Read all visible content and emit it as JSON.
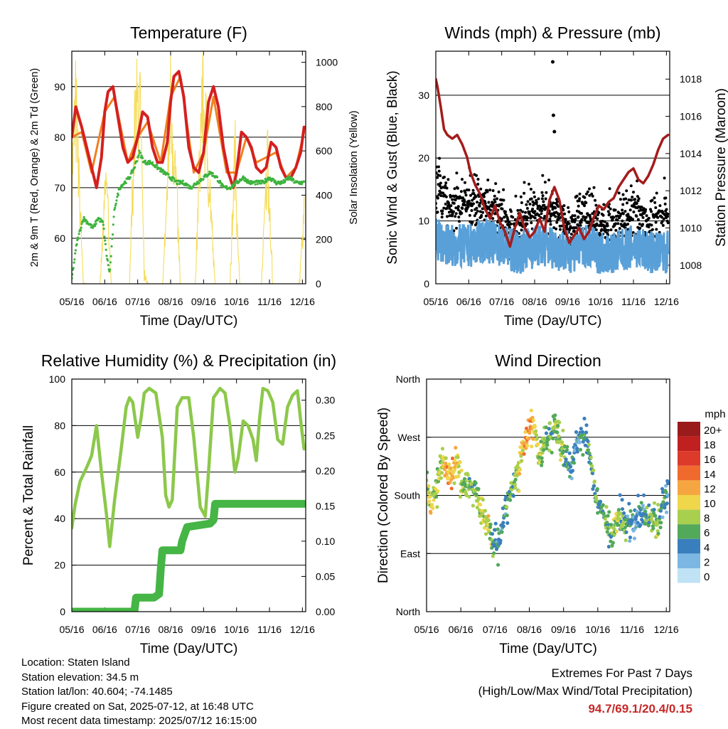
{
  "colors": {
    "temp_2m": "#d42020",
    "temp_9m": "#f08020",
    "dewpoint": "#3db33d",
    "solar": "#f5dc5a",
    "wind": "#5aa0d8",
    "gust": "#000000",
    "pressure": "#a31c1c",
    "rh": "#8cc84b",
    "precip": "#45b545",
    "extremes": "#c62828"
  },
  "time_ticks": [
    "05/16",
    "06/16",
    "07/16",
    "08/16",
    "09/16",
    "10/16",
    "11/16",
    "12/16"
  ],
  "chart_data": [
    {
      "id": "temperature",
      "type": "line",
      "title": "Temperature (F)",
      "xlabel": "Time (Day/UTC)",
      "ylabel": "2m & 9m T (Red, Orange) & 2m Td (Green)",
      "y2label": "Solar Insolation (Yellow)",
      "ylim": [
        51,
        97
      ],
      "y2lim": [
        0,
        1050
      ],
      "yticks": [
        60,
        70,
        80,
        90
      ],
      "y2ticks": [
        0,
        200,
        400,
        600,
        800,
        1000
      ],
      "grid": true,
      "x_day_range": [
        0,
        7.1
      ],
      "series": [
        {
          "key": "temp_2m",
          "axis": "left",
          "x": [
            0,
            0.12,
            0.3,
            0.45,
            0.6,
            0.75,
            0.9,
            1.0,
            1.1,
            1.25,
            1.4,
            1.55,
            1.7,
            1.85,
            2.0,
            2.15,
            2.3,
            2.45,
            2.6,
            2.75,
            2.9,
            3.0,
            3.1,
            3.25,
            3.4,
            3.55,
            3.7,
            3.85,
            4.0,
            4.15,
            4.3,
            4.45,
            4.6,
            4.75,
            4.9,
            5.0,
            5.15,
            5.3,
            5.45,
            5.6,
            5.75,
            5.9,
            6.05,
            6.2,
            6.35,
            6.5,
            6.65,
            6.8,
            6.95,
            7.05
          ],
          "values": [
            80,
            86,
            82,
            78,
            74,
            70,
            76,
            85,
            89,
            90,
            84,
            78,
            75,
            76,
            80,
            85,
            84,
            78,
            75,
            75,
            79,
            87,
            92,
            93,
            88,
            78,
            74,
            73,
            77,
            87,
            90,
            86,
            78,
            73,
            70,
            73,
            81,
            80,
            78,
            74,
            73,
            74,
            79,
            78,
            74,
            72,
            72,
            74,
            77,
            82
          ]
        },
        {
          "key": "temp_9m",
          "axis": "left",
          "x": [
            0,
            0.3,
            0.6,
            1.0,
            1.3,
            1.7,
            2.0,
            2.3,
            2.7,
            3.0,
            3.3,
            3.7,
            4.0,
            4.3,
            4.7,
            5.0,
            5.3,
            5.6,
            5.9,
            6.2,
            6.5,
            6.8,
            7.05
          ],
          "values": [
            80,
            81,
            73,
            85,
            88,
            75,
            80,
            83,
            75,
            88,
            92,
            73,
            77,
            88,
            73,
            73,
            80,
            75,
            76,
            77,
            72,
            74,
            81
          ]
        },
        {
          "key": "dewpoint",
          "axis": "left",
          "x": [
            0,
            0.15,
            0.35,
            0.5,
            0.65,
            0.8,
            0.95,
            1.05,
            1.15,
            1.3,
            1.45,
            1.6,
            1.75,
            1.9,
            2.05,
            2.2,
            2.4,
            2.6,
            2.8,
            3.0,
            3.2,
            3.4,
            3.6,
            3.8,
            4.0,
            4.2,
            4.4,
            4.6,
            4.8,
            5.0,
            5.2,
            5.4,
            5.6,
            5.8,
            6.0,
            6.2,
            6.4,
            6.6,
            6.8,
            7.05
          ],
          "values": [
            52,
            59,
            64,
            63,
            62,
            64,
            63,
            57,
            53,
            66,
            70,
            71,
            72,
            74,
            77,
            75,
            75,
            74,
            73,
            72,
            71,
            71,
            70,
            71,
            72,
            73,
            72,
            70,
            70,
            71,
            72,
            71,
            71,
            71,
            72,
            71,
            71,
            72,
            71,
            71
          ]
        },
        {
          "key": "solar",
          "axis": "right",
          "x": [
            0,
            0.12,
            0.35,
            0.55,
            0.85,
            1.05,
            1.2,
            1.4,
            1.75,
            1.9,
            2.05,
            2.2,
            2.35,
            2.55,
            2.75,
            2.9,
            3.0,
            3.15,
            3.3,
            3.55,
            3.75,
            3.95,
            4.05,
            4.2,
            4.35,
            4.55,
            4.8,
            4.95,
            5.1,
            5.3,
            5.5,
            5.75,
            5.95,
            6.1,
            6.3,
            6.5,
            6.75,
            6.9,
            7.05
          ],
          "values": [
            600,
            950,
            20,
            0,
            0,
            580,
            0,
            0,
            0,
            800,
            1050,
            60,
            0,
            0,
            0,
            520,
            1000,
            600,
            0,
            0,
            0,
            1000,
            860,
            500,
            0,
            0,
            0,
            720,
            0,
            0,
            0,
            0,
            720,
            0,
            0,
            0,
            0,
            0,
            420
          ]
        }
      ]
    },
    {
      "id": "winds",
      "type": "scatter",
      "title": "Winds (mph) & Pressure (mb)",
      "xlabel": "Time (Day/UTC)",
      "ylabel": "Sonic Wind & Gust (Blue, Black)",
      "y2label": "Station Pressure (Maroon)",
      "ylim": [
        0,
        37
      ],
      "y2lim": [
        1007,
        1019.5
      ],
      "yticks": [
        0,
        10,
        20,
        30
      ],
      "y2ticks": [
        1008,
        1010,
        1012,
        1014,
        1016,
        1018
      ],
      "grid": true,
      "x_day_range": [
        0,
        7.1
      ],
      "series": [
        {
          "key": "wind",
          "axis": "left",
          "x": [
            0,
            0.5,
            1.0,
            1.5,
            2.0,
            2.5,
            3.0,
            3.5,
            4.0,
            4.5,
            5.0,
            5.5,
            6.0,
            6.5,
            7.05
          ],
          "values": [
            7,
            6,
            6,
            7,
            6,
            5,
            6,
            6,
            5,
            6,
            5,
            5,
            6,
            5,
            5
          ]
        },
        {
          "key": "gust",
          "axis": "left",
          "x": [
            0,
            0.5,
            1.0,
            1.5,
            2.0,
            2.5,
            3.0,
            3.5,
            4.0,
            4.5,
            5.0,
            5.5,
            6.0,
            6.5,
            7.05
          ],
          "values": [
            14,
            11,
            12,
            12,
            9,
            8,
            11,
            11,
            8,
            10,
            8,
            9,
            11,
            9,
            10
          ]
        },
        {
          "key": "pressure",
          "axis": "right",
          "x": [
            0,
            0.05,
            0.15,
            0.25,
            0.35,
            0.5,
            0.65,
            0.8,
            0.95,
            1.05,
            1.2,
            1.35,
            1.5,
            1.65,
            1.8,
            1.95,
            2.1,
            2.25,
            2.4,
            2.55,
            2.7,
            2.85,
            3.0,
            3.15,
            3.3,
            3.45,
            3.6,
            3.75,
            3.9,
            4.05,
            4.2,
            4.35,
            4.5,
            4.65,
            4.8,
            4.95,
            5.1,
            5.25,
            5.4,
            5.55,
            5.7,
            5.85,
            6.0,
            6.15,
            6.3,
            6.45,
            6.6,
            6.75,
            6.9,
            7.05
          ],
          "values": [
            1018.0,
            1017.6,
            1016.5,
            1015.3,
            1015.0,
            1014.8,
            1015.0,
            1014.5,
            1013.8,
            1013.0,
            1012.3,
            1011.8,
            1011.0,
            1010.5,
            1011.2,
            1010.3,
            1009.8,
            1009.0,
            1010.0,
            1010.8,
            1010.0,
            1009.5,
            1009.8,
            1010.5,
            1009.8,
            1011.5,
            1012.2,
            1011.5,
            1010.0,
            1009.2,
            1009.6,
            1010.0,
            1009.4,
            1009.8,
            1010.6,
            1011.2,
            1011.0,
            1011.4,
            1011.6,
            1012.2,
            1012.6,
            1013.0,
            1013.2,
            1012.6,
            1012.4,
            1012.8,
            1013.4,
            1014.2,
            1014.8,
            1015.0
          ]
        }
      ],
      "annotations_peak_gust": [
        {
          "x": 3.55,
          "value": 35.3
        },
        {
          "x": 3.57,
          "value": 26.8
        },
        {
          "x": 3.6,
          "value": 24.2
        }
      ]
    },
    {
      "id": "humidity",
      "type": "line",
      "title": "Relative Humidity (%) & Precipitation (in)",
      "xlabel": "Time (Day/UTC)",
      "ylabel": "Percent & Total Rainfall",
      "ylim": [
        0,
        100
      ],
      "y2lim": [
        0,
        0.33
      ],
      "yticks": [
        0,
        20,
        40,
        60,
        80,
        100
      ],
      "y2ticks": [
        "0.00",
        "0.05",
        "0.10",
        "0.15",
        "0.20",
        "0.25",
        "0.30"
      ],
      "grid": true,
      "x_day_range": [
        0,
        7.1
      ],
      "series": [
        {
          "key": "rh",
          "axis": "left",
          "x": [
            0,
            0.1,
            0.25,
            0.45,
            0.6,
            0.75,
            0.9,
            1.05,
            1.15,
            1.3,
            1.5,
            1.65,
            1.75,
            1.85,
            2.0,
            2.1,
            2.2,
            2.35,
            2.55,
            2.75,
            2.85,
            2.95,
            3.05,
            3.2,
            3.35,
            3.55,
            3.7,
            3.9,
            4.05,
            4.15,
            4.3,
            4.5,
            4.65,
            4.8,
            4.95,
            5.05,
            5.2,
            5.35,
            5.5,
            5.6,
            5.7,
            5.8,
            5.95,
            6.1,
            6.25,
            6.4,
            6.55,
            6.7,
            6.85,
            6.95,
            7.05
          ],
          "values": [
            36,
            46,
            56,
            62,
            67,
            80,
            60,
            42,
            28,
            48,
            70,
            88,
            92,
            90,
            75,
            83,
            94,
            96,
            94,
            75,
            50,
            45,
            48,
            88,
            92,
            92,
            75,
            45,
            41,
            60,
            92,
            96,
            94,
            80,
            60,
            66,
            82,
            80,
            74,
            65,
            83,
            96,
            95,
            90,
            74,
            72,
            88,
            93,
            95,
            82,
            70
          ]
        },
        {
          "key": "precip",
          "axis": "right",
          "x": [
            0,
            1.9,
            1.95,
            2.5,
            2.65,
            2.7,
            2.75,
            3.3,
            3.35,
            3.5,
            4.2,
            4.3,
            4.35,
            7.05
          ],
          "values": [
            0.0,
            0.0,
            0.02,
            0.02,
            0.025,
            0.06,
            0.087,
            0.087,
            0.1,
            0.12,
            0.125,
            0.13,
            0.153,
            0.153
          ]
        }
      ]
    },
    {
      "id": "wind_direction",
      "type": "scatter",
      "title": "Wind Direction",
      "xlabel": "Time (Day/UTC)",
      "ylabel": "Direction (Colored By Speed)",
      "ylim": [
        0,
        360
      ],
      "yticks": [
        "North",
        "East",
        "South",
        "West",
        "North"
      ],
      "grid": true,
      "x_day_range": [
        0,
        7.1
      ],
      "x": [
        0,
        0.15,
        0.3,
        0.45,
        0.6,
        0.75,
        0.9,
        1.05,
        1.2,
        1.35,
        1.5,
        1.65,
        1.8,
        1.95,
        2.1,
        2.25,
        2.4,
        2.55,
        2.7,
        2.85,
        3.0,
        3.15,
        3.3,
        3.45,
        3.6,
        3.75,
        3.9,
        4.05,
        4.2,
        4.35,
        4.5,
        4.65,
        4.8,
        4.95,
        5.1,
        5.25,
        5.4,
        5.55,
        5.7,
        5.85,
        6.0,
        6.15,
        6.3,
        6.45,
        6.6,
        6.75,
        6.9,
        7.05
      ],
      "values": [
        190,
        160,
        190,
        230,
        220,
        210,
        235,
        185,
        205,
        190,
        170,
        150,
        130,
        110,
        100,
        140,
        180,
        200,
        220,
        260,
        280,
        290,
        240,
        260,
        270,
        290,
        260,
        240,
        220,
        250,
        275,
        270,
        230,
        170,
        160,
        140,
        120,
        140,
        150,
        135,
        140,
        150,
        155,
        145,
        140,
        135,
        170,
        180
      ],
      "speeds": [
        8,
        9,
        7,
        9,
        11,
        12,
        10,
        8,
        7,
        6,
        8,
        9,
        10,
        5,
        4,
        5,
        6,
        7,
        9,
        12,
        13,
        10,
        8,
        7,
        6,
        7,
        8,
        6,
        5,
        4,
        4,
        5,
        6,
        6,
        5,
        6,
        7,
        9,
        6,
        5,
        4,
        3,
        4,
        5,
        6,
        7,
        5,
        4
      ],
      "legend": {
        "title": "mph",
        "labels": [
          "20+",
          "18",
          "16",
          "14",
          "12",
          "10",
          "8",
          "6",
          "4",
          "2",
          "0"
        ],
        "colors": [
          "#9a1b1b",
          "#c02020",
          "#dc3a2a",
          "#f06a2e",
          "#f6a640",
          "#f0d64a",
          "#a8cf4e",
          "#52a95a",
          "#3a7fbd",
          "#7cb7e3",
          "#bfe2f5"
        ]
      }
    }
  ],
  "station": {
    "location": "Location: Staten Island",
    "elevation": "Station elevation: 34.5 m",
    "latlon": "Station lat/lon: 40.604; -74.1485",
    "created": "Figure created on Sat, 2025-07-12, at 16:48 UTC",
    "recent": "Most recent data timestamp: 2025/07/12 16:15:00"
  },
  "extremes": {
    "title": "Extremes For Past 7 Days",
    "subtitle": "(High/Low/Max Wind/Total Precipitation)",
    "values": "94.7/69.1/20.4/0.15"
  }
}
